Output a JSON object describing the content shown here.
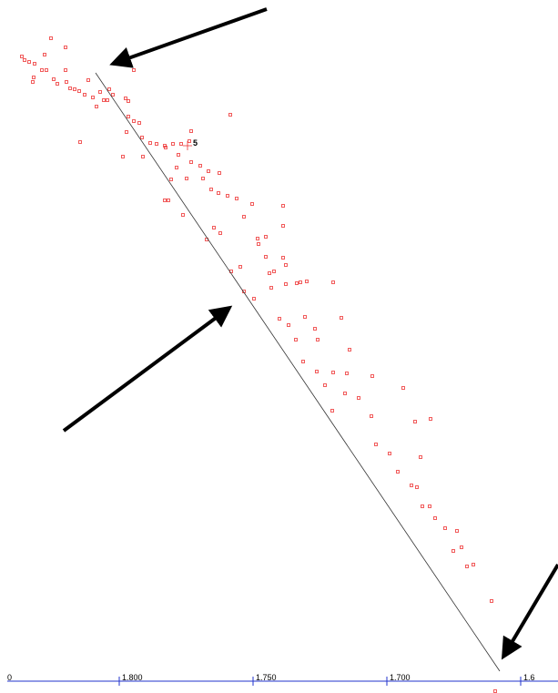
{
  "plot": {
    "point_label": "5",
    "axis_labels": [
      "0",
      "1.800",
      "1.750",
      "1.700",
      "1.6"
    ]
  }
}
